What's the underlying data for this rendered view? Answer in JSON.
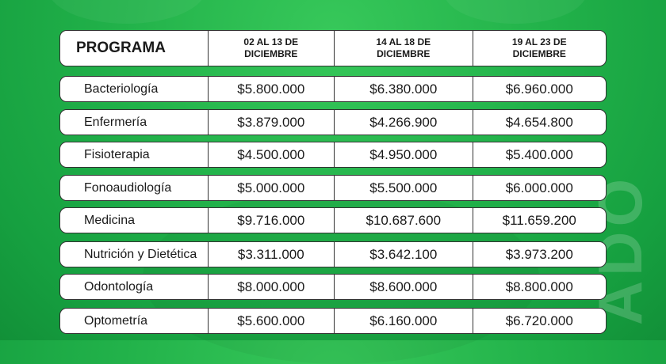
{
  "table": {
    "headers": [
      "PROGRAMA",
      "02 AL 13 DE\nDICIEMBRE",
      "14 AL 18 DE\nDICIEMBRE",
      "19 AL 23 DE\nDICIEMBRE"
    ],
    "header_lines": [
      [
        "02 AL 13 DE",
        "DICIEMBRE"
      ],
      [
        "14 AL 18 DE",
        "DICIEMBRE"
      ],
      [
        "19 AL 23 DE",
        "DICIEMBRE"
      ]
    ],
    "rows": [
      [
        "Bacteriología",
        "$5.800.000",
        "$6.380.000",
        "$6.960.000"
      ],
      [
        "Enfermería",
        "$3.879.000",
        "$4.266.900",
        "$4.654.800"
      ],
      [
        "Fisioterapia",
        "$4.500.000",
        "$4.950.000",
        "$5.400.000"
      ],
      [
        "Fonoaudiología",
        "$5.000.000",
        "$5.500.000",
        "$6.000.000"
      ],
      [
        "Medicina",
        "$9.716.000",
        "$10.687.600",
        "$11.659.200"
      ],
      [
        "Nutrición y Dietética",
        "$3.311.000",
        "$3.642.100",
        "$3.973.200"
      ],
      [
        "Odontología",
        "$8.000.000",
        "$8.600.000",
        "$8.800.000"
      ],
      [
        "Optometría",
        "$5.600.000",
        "$6.160.000",
        "$6.720.000"
      ]
    ]
  },
  "side_text": "ADO",
  "colors": {
    "background": "#22b24a",
    "cell": "#ffffff",
    "border": "#333333"
  }
}
